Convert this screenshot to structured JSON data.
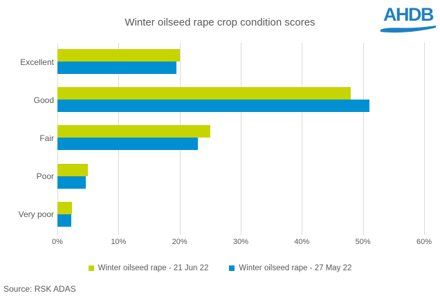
{
  "title": "Winter oilseed rape crop condition scores",
  "logo": {
    "text": "AHDB"
  },
  "source": "Source: RSK ADAS",
  "colors": {
    "jun_green": "#C6D400",
    "may_blue": "#0090D1",
    "logo_blue": "#1F80C4",
    "text_gray": "#595959",
    "gridline_gray": "#D9D9D9"
  },
  "chart_data": {
    "type": "bar",
    "orientation": "horizontal",
    "title": "Winter oilseed rape crop condition scores",
    "categories": [
      "Excellent",
      "Good",
      "Fair",
      "Poor",
      "Very poor"
    ],
    "series": [
      {
        "name": "Winter oilseed rape - 21 Jun 22",
        "color": "#C6D400",
        "values": [
          20,
          48,
          25,
          5,
          2.4
        ]
      },
      {
        "name": "Winter oilseed rape - 27 May 22",
        "color": "#0090D1",
        "values": [
          19.5,
          51,
          23,
          4.6,
          2.3
        ]
      }
    ],
    "x_ticks": [
      "0%",
      "10%",
      "20%",
      "30%",
      "40%",
      "50%",
      "60%"
    ],
    "xlim": [
      0,
      60
    ],
    "grid": "vertical-only",
    "legend_position": "bottom",
    "xlabel": "",
    "ylabel": ""
  }
}
